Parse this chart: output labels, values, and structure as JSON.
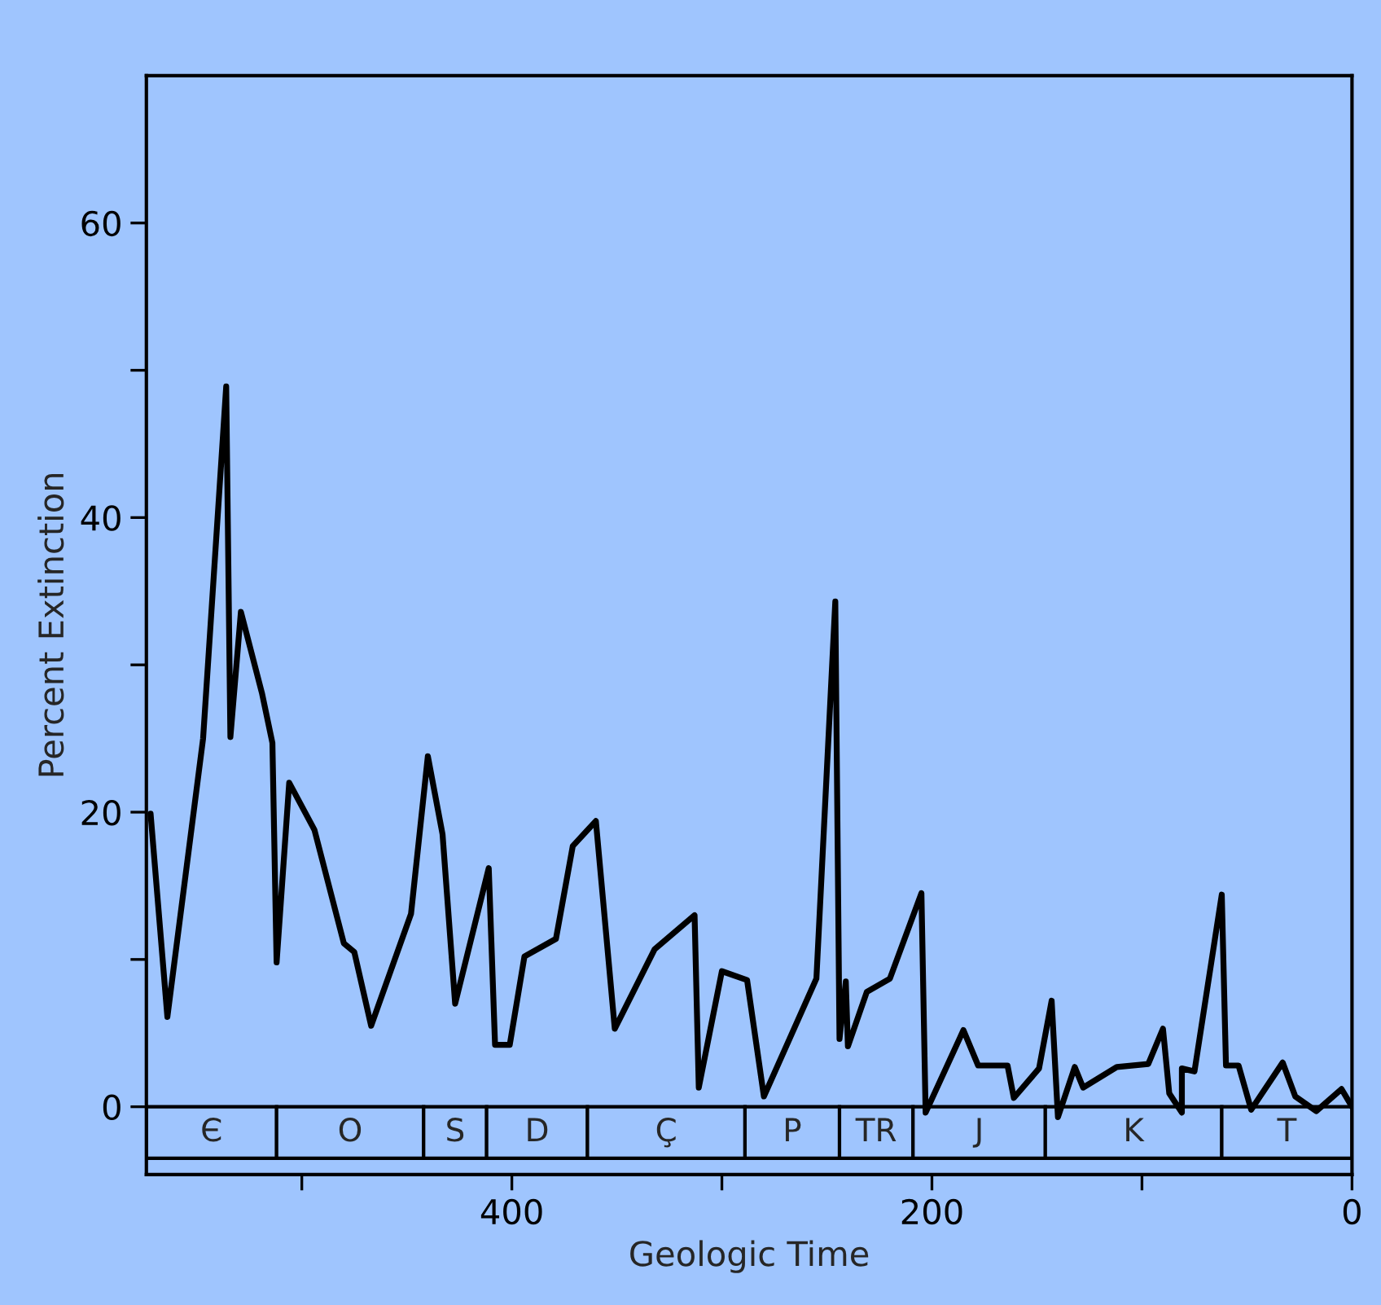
{
  "chart_data": {
    "type": "line",
    "xlabel": "Geologic Time",
    "ylabel": "Percent Extinction",
    "x": [
      572,
      564,
      547,
      536,
      534,
      529,
      519,
      514,
      512,
      506,
      494,
      480,
      475,
      467,
      448,
      440,
      433,
      427,
      411,
      408,
      401,
      394,
      379,
      371,
      360,
      351,
      332,
      313,
      311,
      300,
      288,
      280,
      255,
      246,
      244,
      241,
      240,
      231,
      220,
      205,
      203,
      185,
      178,
      164,
      161,
      149,
      143,
      140,
      132,
      128,
      112,
      97,
      90,
      87,
      81,
      81,
      75,
      62,
      60,
      54,
      48,
      33,
      27,
      17,
      5,
      0
    ],
    "series": [
      {
        "color": "#000000",
        "values": [
          19.9,
          6.1,
          25,
          48.9,
          25.1,
          33.6,
          28.1,
          24.7,
          9.8,
          22,
          18.8,
          11.1,
          10.5,
          5.5,
          13.1,
          23.8,
          18.5,
          7.0,
          16.2,
          4.2,
          4.2,
          10.2,
          11.4,
          17.7,
          19.4,
          5.3,
          10.7,
          13.0,
          1.3,
          9.2,
          8.6,
          0.7,
          8.7,
          34.3,
          4.6,
          8.5,
          4.1,
          7.8,
          8.7,
          14.5,
          -0.4,
          5.2,
          2.8,
          2.8,
          0.6,
          2.6,
          7.2,
          -0.7,
          2.7,
          1.3,
          2.7,
          2.9,
          5.3,
          0.9,
          -0.4,
          2.6,
          2.4,
          14.4,
          2.8,
          2.8,
          -0.2,
          3.0,
          0.7,
          -0.3,
          1.2,
          0
        ]
      }
    ],
    "xlim": [
      574,
      0
    ],
    "ylim": [
      -4.6,
      70
    ],
    "xticks": [
      {
        "value": 500,
        "label": null
      },
      400,
      {
        "value": 300,
        "label": null
      },
      200,
      {
        "value": 100,
        "label": null
      },
      0
    ],
    "yticks": [
      0,
      {
        "value": 10,
        "label": null
      },
      20,
      {
        "value": 30,
        "label": null
      },
      40,
      {
        "value": 50,
        "label": null
      },
      60
    ],
    "bands": [
      {
        "axis": "x",
        "from": 574,
        "to": 512,
        "label": "Є"
      },
      {
        "axis": "x",
        "from": 512,
        "to": 442,
        "label": "O"
      },
      {
        "axis": "x",
        "from": 442,
        "to": 412,
        "label": "S"
      },
      {
        "axis": "x",
        "from": 412,
        "to": 364,
        "label": "D"
      },
      {
        "axis": "x",
        "from": 364,
        "to": 289,
        "label": "Ç"
      },
      {
        "axis": "x",
        "from": 289,
        "to": 244,
        "label": "P"
      },
      {
        "axis": "x",
        "from": 244,
        "to": 209,
        "label": "TR"
      },
      {
        "axis": "x",
        "from": 209,
        "to": 146,
        "label": "J"
      },
      {
        "axis": "x",
        "from": 146,
        "to": 62,
        "label": "K"
      },
      {
        "axis": "x",
        "from": 62,
        "to": 0,
        "label": "T"
      }
    ],
    "grid": false,
    "legend": false,
    "line_style": "solid",
    "marker": "none"
  }
}
